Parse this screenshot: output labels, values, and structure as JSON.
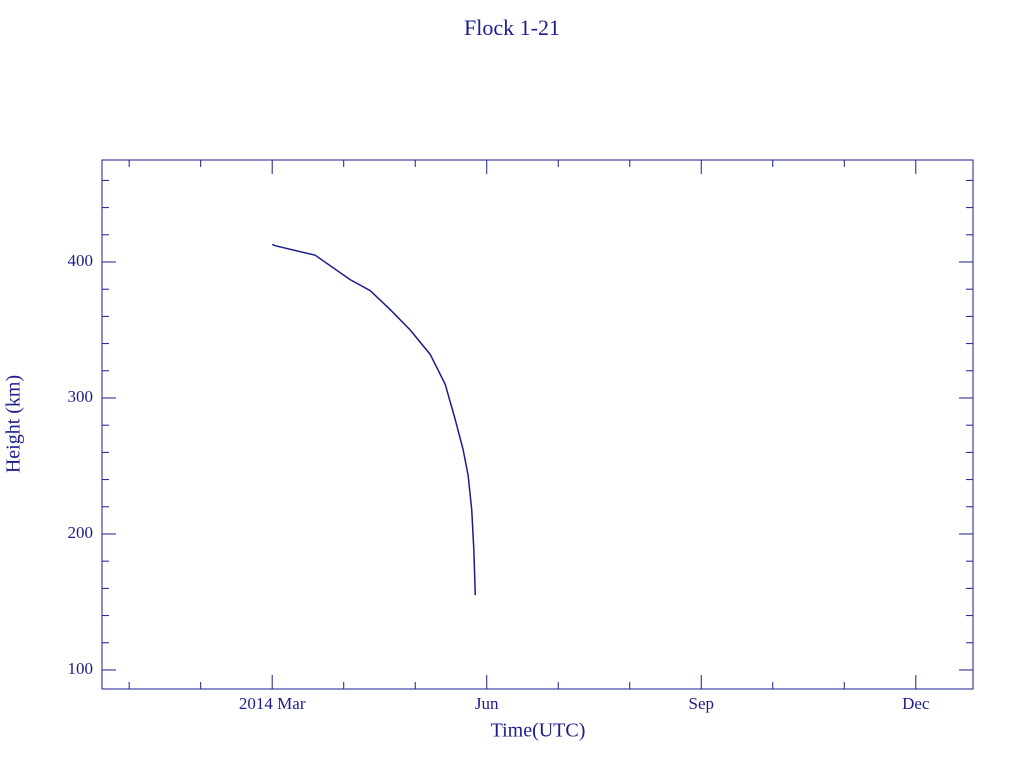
{
  "chart_data": {
    "type": "line",
    "title": "Flock 1-21",
    "x_label": "Time(UTC)",
    "y_label": "Height (km)",
    "color": "#1c1c8c",
    "x": [
      3.0,
      3.04,
      3.6,
      4.09,
      4.37,
      4.65,
      4.93,
      5.21,
      5.42,
      5.56,
      5.67,
      5.74,
      5.79,
      5.82,
      5.84
    ],
    "values": [
      413,
      412,
      405,
      387,
      379,
      365,
      350,
      332,
      310,
      284,
      262,
      243,
      218,
      188,
      155
    ],
    "xlim": [
      0.62,
      12.8
    ],
    "xticks": [
      {
        "value": 3,
        "label": "2014 Mar"
      },
      {
        "value": 6,
        "label": "Jun"
      },
      {
        "value": 9,
        "label": "Sep"
      },
      {
        "value": 12,
        "label": "Dec"
      }
    ],
    "xminorticks": [
      1,
      2,
      4,
      5,
      7,
      8,
      10,
      11
    ],
    "ylim": [
      86,
      475
    ],
    "yticks": [
      100,
      200,
      300,
      400
    ],
    "yminorticks": [
      120,
      140,
      160,
      180,
      220,
      240,
      260,
      280,
      320,
      340,
      360,
      380,
      420,
      440,
      460
    ]
  }
}
